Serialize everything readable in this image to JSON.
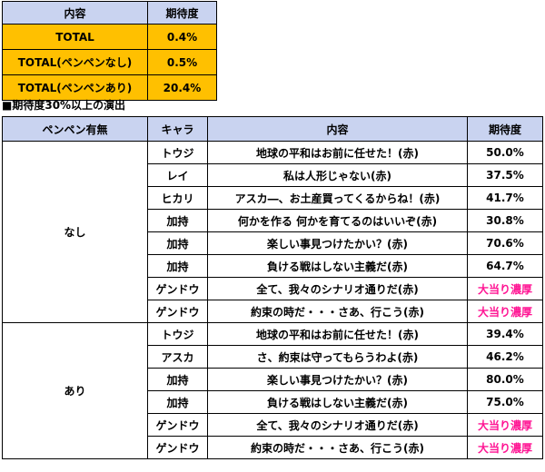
{
  "summary": {
    "headers": [
      "内容",
      "期待度"
    ],
    "rows": [
      {
        "label": "TOTAL",
        "value": "0.4%"
      },
      {
        "label": "TOTAL(ペンペンなし)",
        "value": "0.5%"
      },
      {
        "label": "TOTAL(ペンペンあり)",
        "value": "20.4%"
      }
    ]
  },
  "section_title": "■期待度30%以上の演出",
  "effects": {
    "headers": [
      "ペンペン有無",
      "キャラ",
      "内容",
      "期待度"
    ],
    "groups": [
      {
        "label": "なし",
        "rows": [
          {
            "chara": "トウジ",
            "content": "地球の平和はお前に任せた！(赤)",
            "value": "50.0%"
          },
          {
            "chara": "レイ",
            "content": "私は人形じゃない(赤)",
            "value": "37.5%"
          },
          {
            "chara": "ヒカリ",
            "content": "アスカ―、お土産買ってくるからね！(赤)",
            "value": "41.7%"
          },
          {
            "chara": "加持",
            "content": "何かを作る 何かを育てるのはいいぞ(赤)",
            "value": "30.8%"
          },
          {
            "chara": "加持",
            "content": "楽しい事見つけたかい？(赤)",
            "value": "70.6%"
          },
          {
            "chara": "加持",
            "content": "負ける戦はしない主義だ(赤)",
            "value": "64.7%"
          },
          {
            "chara": "ゲンドウ",
            "content": "全て、我々のシナリオ通りだ(赤)",
            "value": "大当り濃厚"
          },
          {
            "chara": "ゲンドウ",
            "content": "約束の時だ・・・さあ、行こう(赤)",
            "value": "大当り濃厚"
          }
        ]
      },
      {
        "label": "あり",
        "rows": [
          {
            "chara": "トウジ",
            "content": "地球の平和はお前に任せた！(赤)",
            "value": "39.4%"
          },
          {
            "chara": "アスカ",
            "content": "さ、約束は守ってもらうわよ(赤)",
            "value": "46.2%"
          },
          {
            "chara": "加持",
            "content": "楽しい事見つけたかい？(赤)",
            "value": "80.0%"
          },
          {
            "chara": "加持",
            "content": "負ける戦はしない主義だ(赤)",
            "value": "75.0%"
          },
          {
            "chara": "ゲンドウ",
            "content": "全て、我々のシナリオ通りだ(赤)",
            "value": "大当り濃厚"
          },
          {
            "chara": "ゲンドウ",
            "content": "約束の時だ・・・さあ、行こう(赤)",
            "value": "大当り濃厚"
          }
        ]
      }
    ]
  },
  "colors": {
    "header_bg": "#c9d3f0",
    "summary_bg": "#ffc000",
    "highlight_text": "#ff1493"
  }
}
